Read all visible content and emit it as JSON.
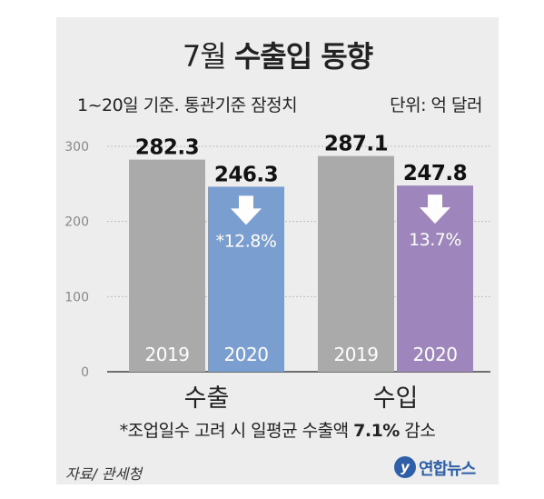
{
  "header": {
    "title_light": "7월",
    "title_bold": "수출입 동향",
    "subtitle": "1~20일 기준. 통관기준 잠정치",
    "unit": "단위: 억 달러"
  },
  "chart_data": {
    "type": "bar",
    "categories": [
      "수출",
      "수입"
    ],
    "series": [
      {
        "name": "2019",
        "values": [
          282.3,
          287.1
        ],
        "color": "#aaaaaa",
        "value_labels": [
          "282.3",
          "287.1"
        ]
      },
      {
        "name": "2020",
        "values": [
          246.3,
          247.8
        ],
        "colors": [
          "#7b9ed0",
          "#9e86bc"
        ],
        "value_labels": [
          "246.3",
          "247.8"
        ]
      }
    ],
    "change_labels": [
      "*12.8%",
      "13.7%"
    ],
    "change_direction": "down",
    "yticks": [
      0,
      100,
      200,
      300
    ],
    "ylim": [
      0,
      300
    ],
    "grid": true
  },
  "footer": {
    "note_pre": "*조업일수 고려 시 일평균 수출액 ",
    "note_bold": "7.1%",
    "note_post": " 감소",
    "source": "자료/ 관세청",
    "logo_mark": "y",
    "logo_text": "연합뉴스"
  }
}
